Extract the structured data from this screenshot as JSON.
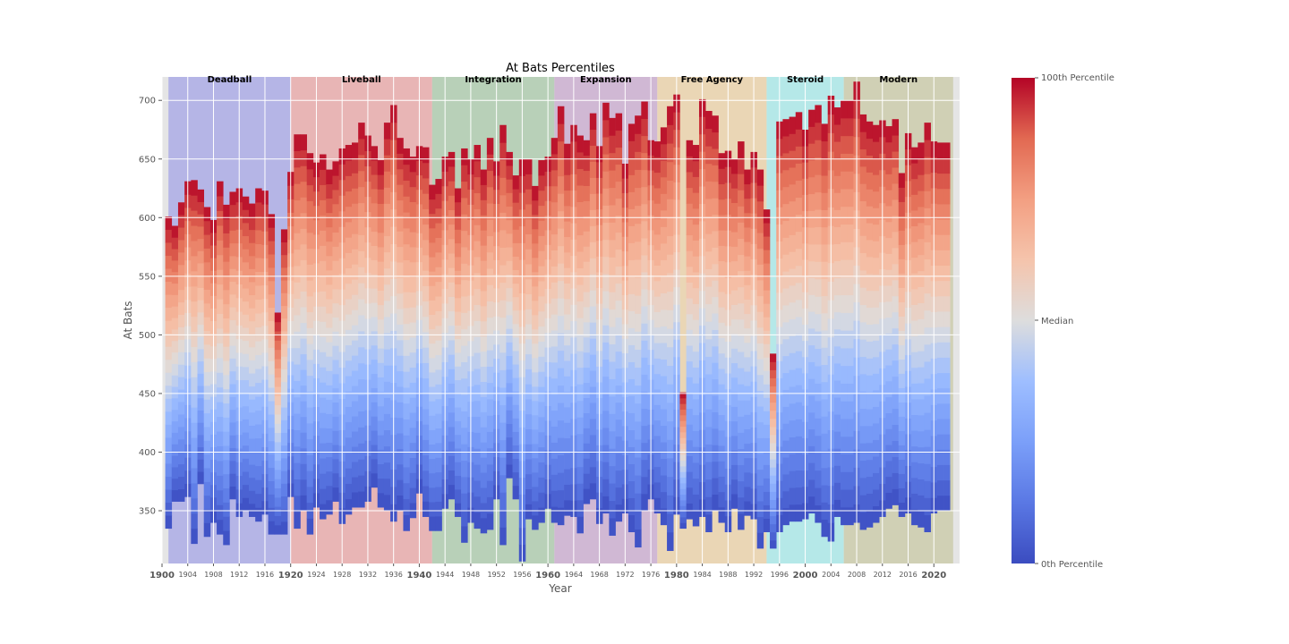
{
  "chart_data": {
    "type": "heatmap",
    "title": "At Bats Percentiles",
    "xlabel": "Year",
    "ylabel": "At Bats",
    "xlim": [
      1900,
      2024
    ],
    "ylim": [
      305,
      720
    ],
    "grid": true,
    "y_ticks": [
      350,
      400,
      450,
      500,
      550,
      600,
      650,
      700
    ],
    "x_major_ticks": [
      1900,
      1920,
      1940,
      1960,
      1980,
      2000,
      2020
    ],
    "x_minor_ticks": [
      1904,
      1908,
      1912,
      1916,
      1924,
      1928,
      1932,
      1936,
      1944,
      1948,
      1952,
      1956,
      1964,
      1968,
      1972,
      1976,
      1984,
      1988,
      1992,
      1996,
      2004,
      2008,
      2012,
      2016
    ],
    "eras": [
      {
        "name": "Deadball",
        "start": 1901,
        "end": 1920,
        "color": "#b5b5e6"
      },
      {
        "name": "Liveball",
        "start": 1920,
        "end": 1942,
        "color": "#e8b5b5"
      },
      {
        "name": "Integration",
        "start": 1942,
        "end": 1961,
        "color": "#b8d0b8"
      },
      {
        "name": "Expansion",
        "start": 1961,
        "end": 1977,
        "color": "#d0b8d4"
      },
      {
        "name": "Free Agency",
        "start": 1977,
        "end": 1994,
        "color": "#ead6b5"
      },
      {
        "name": "Steroid",
        "start": 1994,
        "end": 2006,
        "color": "#b5e8e8"
      },
      {
        "name": "Modern",
        "start": 2006,
        "end": 2023,
        "color": "#d0d0b5"
      }
    ],
    "years": [
      1901,
      1902,
      1903,
      1904,
      1905,
      1906,
      1907,
      1908,
      1909,
      1910,
      1911,
      1912,
      1913,
      1914,
      1915,
      1916,
      1917,
      1918,
      1919,
      1920,
      1921,
      1922,
      1923,
      1924,
      1925,
      1926,
      1927,
      1928,
      1929,
      1930,
      1931,
      1932,
      1933,
      1934,
      1935,
      1936,
      1937,
      1938,
      1939,
      1940,
      1941,
      1942,
      1943,
      1944,
      1945,
      1946,
      1947,
      1948,
      1949,
      1950,
      1951,
      1952,
      1953,
      1954,
      1955,
      1956,
      1957,
      1958,
      1959,
      1960,
      1961,
      1962,
      1963,
      1964,
      1965,
      1966,
      1967,
      1968,
      1969,
      1970,
      1971,
      1972,
      1973,
      1974,
      1975,
      1976,
      1977,
      1978,
      1979,
      1980,
      1981,
      1982,
      1983,
      1984,
      1985,
      1986,
      1987,
      1988,
      1989,
      1990,
      1991,
      1992,
      1993,
      1994,
      1995,
      1996,
      1997,
      1998,
      1999,
      2000,
      2001,
      2002,
      2003,
      2004,
      2005,
      2006,
      2007,
      2008,
      2009,
      2010,
      2011,
      2012,
      2013,
      2014,
      2015,
      2016,
      2017,
      2018,
      2019,
      2020,
      2021,
      2022
    ],
    "min_at_bats": [
      335,
      358,
      358,
      362,
      322,
      373,
      328,
      340,
      330,
      321,
      360,
      345,
      350,
      345,
      341,
      347,
      330,
      330,
      330,
      362,
      335,
      350,
      330,
      353,
      343,
      347,
      358,
      339,
      347,
      353,
      353,
      358,
      370,
      353,
      350,
      341,
      350,
      333,
      344,
      365,
      345,
      333,
      333,
      352,
      360,
      345,
      323,
      340,
      335,
      331,
      334,
      360,
      321,
      378,
      360,
      307,
      343,
      334,
      340,
      352,
      340,
      338,
      346,
      345,
      331,
      356,
      360,
      339,
      348,
      329,
      341,
      348,
      332,
      319,
      350,
      360,
      348,
      338,
      316,
      347,
      335,
      343,
      337,
      345,
      332,
      350,
      340,
      332,
      352,
      334,
      346,
      343,
      318,
      332,
      318,
      332,
      338,
      341,
      341,
      343,
      348,
      340,
      328,
      324,
      345,
      338,
      338,
      340,
      334,
      336,
      340,
      345,
      352,
      355,
      345,
      348,
      338,
      336,
      332,
      348,
      350,
      350
    ],
    "max_at_bats": [
      601,
      593,
      613,
      631,
      632,
      624,
      609,
      598,
      631,
      611,
      622,
      625,
      618,
      612,
      625,
      623,
      603,
      519,
      590,
      639,
      671,
      671,
      655,
      647,
      654,
      641,
      648,
      659,
      662,
      664,
      681,
      670,
      661,
      649,
      681,
      696,
      668,
      659,
      652,
      661,
      660,
      628,
      633,
      652,
      656,
      625,
      659,
      650,
      662,
      641,
      668,
      648,
      679,
      656,
      636,
      650,
      650,
      627,
      649,
      652,
      668,
      695,
      663,
      679,
      670,
      666,
      689,
      661,
      698,
      685,
      689,
      646,
      680,
      687,
      699,
      666,
      665,
      677,
      695,
      705,
      451,
      666,
      662,
      701,
      691,
      687,
      655,
      657,
      650,
      665,
      641,
      656,
      641,
      607,
      484,
      682,
      684,
      686,
      690,
      675,
      692,
      696,
      680,
      704,
      694,
      700,
      700,
      716,
      688,
      682,
      679,
      683,
      678,
      684,
      638,
      672,
      660,
      664,
      681,
      665,
      664,
      664
    ],
    "colorbar": {
      "ticks": [
        "100th Percentile",
        "Median",
        "0th Percentile"
      ],
      "colormap": "coolwarm",
      "low_color": "#3b4cc0",
      "mid_color": "#dddddd",
      "high_color": "#b40426"
    }
  }
}
